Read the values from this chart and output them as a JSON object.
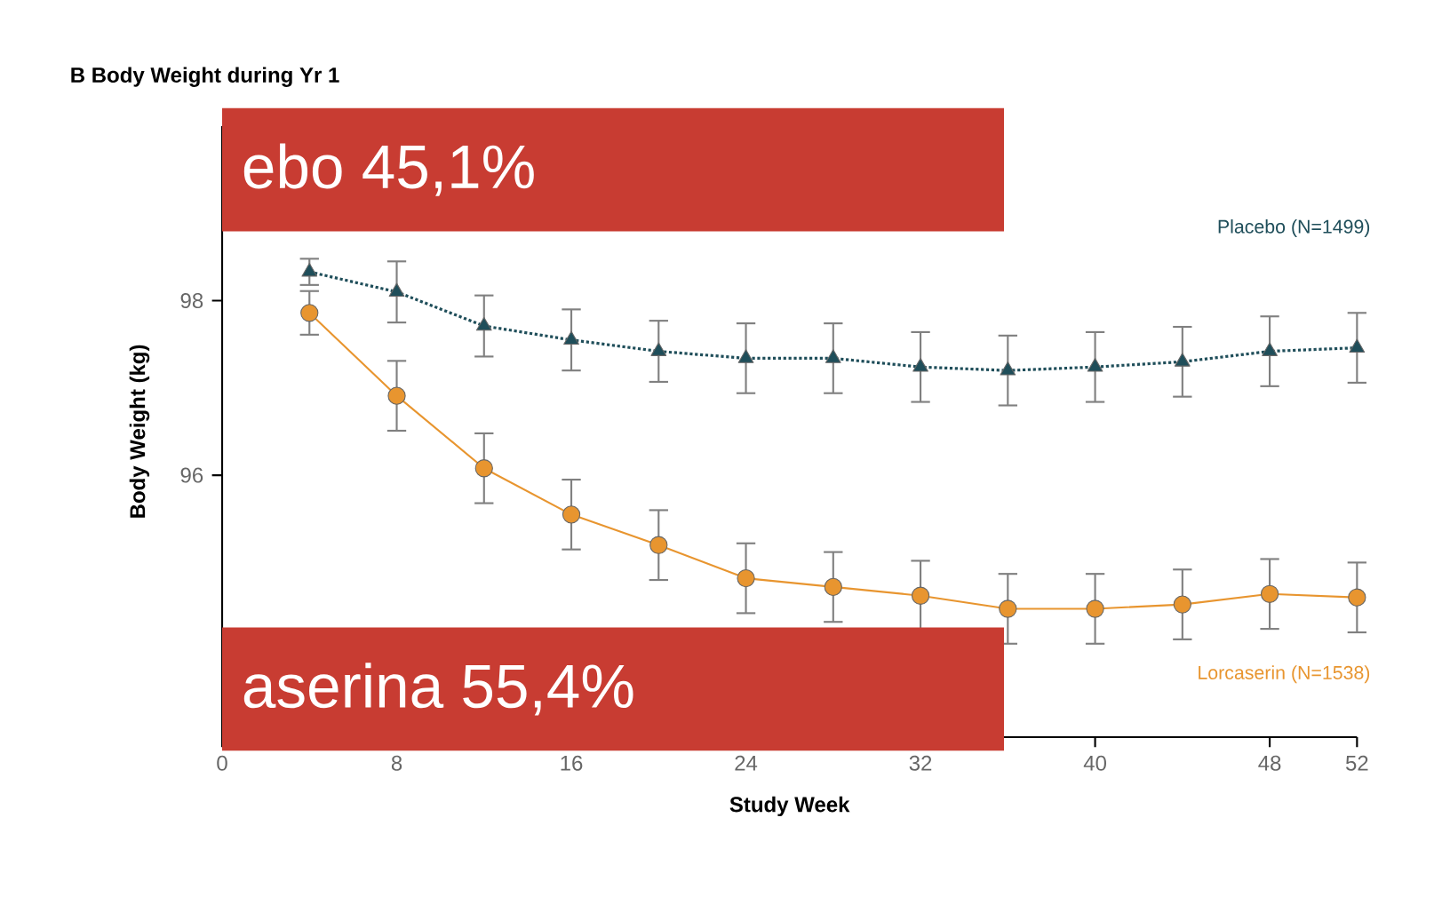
{
  "chart_data": {
    "type": "line",
    "title": "B  Body Weight during Yr 1",
    "xlabel": "Study Week",
    "ylabel": "Body Weight (kg)",
    "x": [
      4,
      8,
      12,
      16,
      20,
      24,
      28,
      32,
      36,
      40,
      44,
      48,
      52
    ],
    "xlim": [
      0,
      52
    ],
    "xticks": [
      0,
      8,
      16,
      24,
      32,
      40,
      48,
      52
    ],
    "ylim": [
      93,
      100
    ],
    "yticks": [
      96,
      98
    ],
    "grid": false,
    "legend": false,
    "series": [
      {
        "name": "Placebo (N=1499)",
        "color": "#1f4e5a",
        "marker": "triangle",
        "line_style": "dotted",
        "values": [
          98.33,
          98.1,
          97.71,
          97.55,
          97.42,
          97.34,
          97.34,
          97.24,
          97.2,
          97.24,
          97.3,
          97.42,
          97.46
        ],
        "errors": [
          0.15,
          0.35,
          0.35,
          0.35,
          0.35,
          0.4,
          0.4,
          0.4,
          0.4,
          0.4,
          0.4,
          0.4,
          0.4
        ]
      },
      {
        "name": "Lorcaserin (N=1538)",
        "color": "#e8952f",
        "marker": "circle",
        "line_style": "solid",
        "values": [
          97.86,
          96.91,
          96.08,
          95.55,
          95.2,
          94.82,
          94.72,
          94.62,
          94.47,
          94.47,
          94.52,
          94.64,
          94.6
        ],
        "errors": [
          0.25,
          0.4,
          0.4,
          0.4,
          0.4,
          0.4,
          0.4,
          0.4,
          0.4,
          0.4,
          0.4,
          0.4,
          0.4
        ]
      }
    ],
    "annotations": [
      "ebo  45,1%",
      "aserina  55,4%"
    ]
  }
}
